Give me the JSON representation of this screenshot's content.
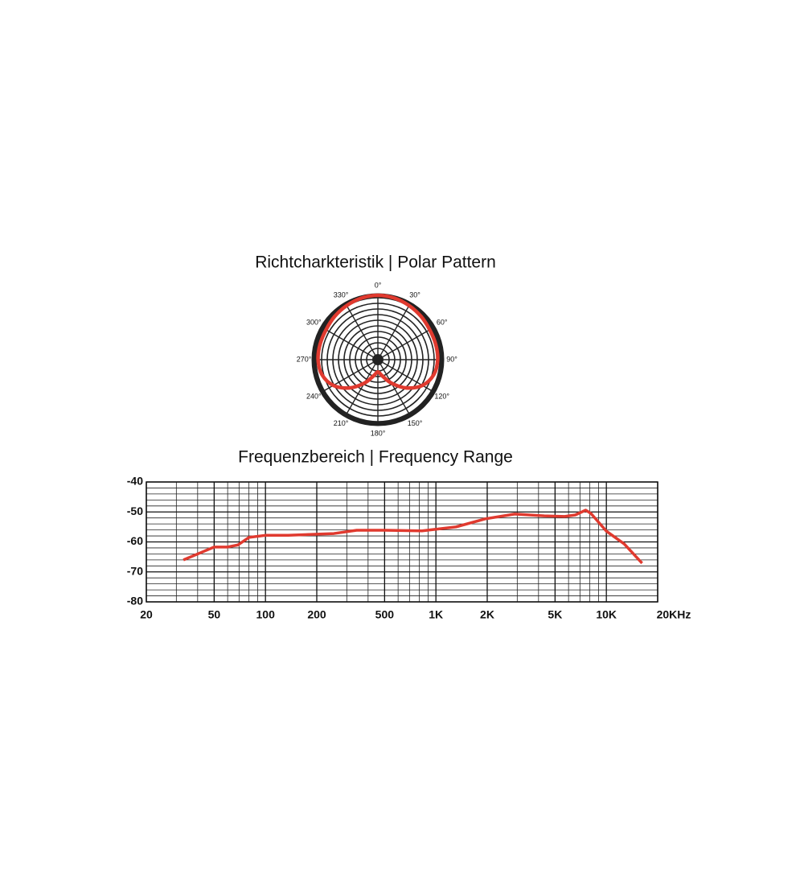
{
  "chart_data": [
    {
      "type": "polar",
      "title": "Richtcharkteristik | Polar Pattern",
      "angles": [
        0,
        15,
        30,
        45,
        60,
        75,
        90,
        105,
        120,
        135,
        150,
        165,
        180,
        195,
        210,
        225,
        240,
        255,
        270,
        285,
        300,
        315,
        330,
        345
      ],
      "values": [
        1.0,
        0.99,
        0.97,
        0.95,
        0.93,
        0.93,
        0.93,
        0.9,
        0.8,
        0.62,
        0.42,
        0.26,
        0.19,
        0.26,
        0.42,
        0.62,
        0.8,
        0.9,
        0.93,
        0.93,
        0.93,
        0.95,
        0.97,
        0.99
      ],
      "rlim": [
        0,
        1
      ],
      "angle_ticks": [
        {
          "value": 0,
          "label": "0°"
        },
        {
          "value": 30,
          "label": "30°"
        },
        {
          "value": 60,
          "label": "60°"
        },
        {
          "value": 90,
          "label": "90°"
        },
        {
          "value": 120,
          "label": "120°"
        },
        {
          "value": 150,
          "label": "150°"
        },
        {
          "value": 180,
          "label": "180°"
        },
        {
          "value": 210,
          "label": "210°"
        },
        {
          "value": 240,
          "label": "240°"
        },
        {
          "value": 270,
          "label": "270°"
        },
        {
          "value": 300,
          "label": "300°"
        },
        {
          "value": 330,
          "label": "330°"
        }
      ],
      "color": "#e03a2f"
    },
    {
      "type": "line",
      "title": "Frequenzbereich | Frequency Range",
      "x": [
        33,
        50,
        60,
        69,
        80,
        100,
        136,
        252,
        343,
        505,
        829,
        1310,
        1950,
        2900,
        4320,
        5690,
        6570,
        7560,
        8120,
        10000,
        12740,
        16200
      ],
      "series": [
        {
          "color": "#e03a2f",
          "values": [
            -66,
            -61.7,
            -61.7,
            -61,
            -58.5,
            -57.8,
            -57.8,
            -57.2,
            -56.1,
            -56.1,
            -56.3,
            -55,
            -52.3,
            -50.7,
            -51.3,
            -51.5,
            -51,
            -49.4,
            -50.5,
            -56.4,
            -60.7,
            -67.1
          ]
        }
      ],
      "xscale": "log",
      "xlim": [
        20,
        20000
      ],
      "xticks": [
        20,
        50,
        100,
        200,
        500,
        {
          "value": 1000,
          "label": "1K"
        },
        {
          "value": 2000,
          "label": "2K"
        },
        {
          "value": 5000,
          "label": "5K"
        },
        {
          "value": 10000,
          "label": "10K"
        },
        {
          "value": 20000,
          "label": "20KHz"
        }
      ],
      "minor_xticks": [
        30,
        40,
        60,
        70,
        80,
        90,
        300,
        400,
        600,
        700,
        800,
        900,
        3000,
        4000,
        6000,
        7000,
        8000,
        9000
      ],
      "ylim": [
        -80,
        -40
      ],
      "yticks": [
        -40,
        -50,
        -60,
        -70,
        -80
      ],
      "minor_yticks": [
        -42,
        -44,
        -46,
        -48,
        -52,
        -54,
        -56,
        -58,
        -62,
        -64,
        -66,
        -68,
        -72,
        -74,
        -76,
        -78
      ],
      "grid": true
    }
  ]
}
